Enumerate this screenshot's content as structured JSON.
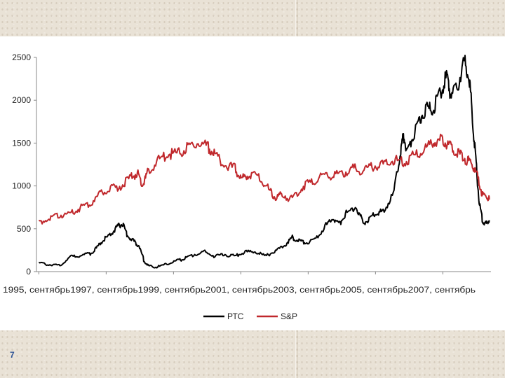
{
  "page": {
    "number": "7"
  },
  "colors": {
    "series_1": "#000000",
    "series_2": "#c0282c",
    "axis": "#888888"
  },
  "chart_data": {
    "type": "line",
    "title": "",
    "xlabel": "",
    "ylabel": "",
    "ylim": [
      0,
      2500
    ],
    "yticks": [
      0,
      500,
      1000,
      1500,
      2000,
      2500
    ],
    "xlim": [
      1995.6,
      2009.1
    ],
    "x_tick_labels": [
      "1995, сентябрь",
      "1997, сентябрь",
      "1999, сентябрь",
      "2001, сентябрь",
      "2003, сентябрь",
      "2005, сентябрь",
      "2007, сентябрь"
    ],
    "x_tick_years": [
      1995.67,
      1997.67,
      1999.67,
      2001.67,
      2003.67,
      2005.67,
      2007.67
    ],
    "legend_position": "bottom",
    "grid": false,
    "series": [
      {
        "name": "РТС",
        "color": "#000000",
        "points": [
          [
            1995.67,
            100
          ],
          [
            1996.0,
            80
          ],
          [
            1996.3,
            75
          ],
          [
            1996.6,
            170
          ],
          [
            1996.9,
            190
          ],
          [
            1997.2,
            210
          ],
          [
            1997.4,
            280
          ],
          [
            1997.6,
            380
          ],
          [
            1997.8,
            430
          ],
          [
            1998.0,
            520
          ],
          [
            1998.15,
            560
          ],
          [
            1998.3,
            420
          ],
          [
            1998.5,
            350
          ],
          [
            1998.65,
            300
          ],
          [
            1998.8,
            120
          ],
          [
            1998.95,
            60
          ],
          [
            1999.2,
            55
          ],
          [
            1999.5,
            90
          ],
          [
            1999.8,
            130
          ],
          [
            2000.0,
            150
          ],
          [
            2000.3,
            200
          ],
          [
            2000.6,
            230
          ],
          [
            2000.9,
            180
          ],
          [
            2001.2,
            200
          ],
          [
            2001.5,
            180
          ],
          [
            2001.8,
            230
          ],
          [
            2002.1,
            230
          ],
          [
            2002.4,
            180
          ],
          [
            2002.7,
            240
          ],
          [
            2003.0,
            320
          ],
          [
            2003.2,
            400
          ],
          [
            2003.4,
            360
          ],
          [
            2003.6,
            340
          ],
          [
            2003.9,
            380
          ],
          [
            2004.2,
            540
          ],
          [
            2004.4,
            620
          ],
          [
            2004.6,
            560
          ],
          [
            2004.8,
            680
          ],
          [
            2005.1,
            760
          ],
          [
            2005.3,
            560
          ],
          [
            2005.5,
            620
          ],
          [
            2005.7,
            680
          ],
          [
            2005.9,
            700
          ],
          [
            2006.2,
            900
          ],
          [
            2006.4,
            1350
          ],
          [
            2006.5,
            1600
          ],
          [
            2006.6,
            1400
          ],
          [
            2006.8,
            1600
          ],
          [
            2007.0,
            1800
          ],
          [
            2007.2,
            1900
          ],
          [
            2007.4,
            1900
          ],
          [
            2007.6,
            2100
          ],
          [
            2007.8,
            2300
          ],
          [
            2007.9,
            2050
          ],
          [
            2008.1,
            2150
          ],
          [
            2008.3,
            2450
          ],
          [
            2008.45,
            2300
          ],
          [
            2008.55,
            1800
          ],
          [
            2008.65,
            1300
          ],
          [
            2008.75,
            800
          ],
          [
            2008.85,
            600
          ],
          [
            2008.95,
            550
          ],
          [
            2009.05,
            600
          ]
        ]
      },
      {
        "name": "S&P",
        "color": "#c0282c",
        "points": [
          [
            1995.67,
            580
          ],
          [
            1996.0,
            620
          ],
          [
            1996.3,
            660
          ],
          [
            1996.6,
            680
          ],
          [
            1996.9,
            740
          ],
          [
            1997.2,
            800
          ],
          [
            1997.5,
            910
          ],
          [
            1997.8,
            960
          ],
          [
            1998.1,
            1000
          ],
          [
            1998.4,
            1100
          ],
          [
            1998.6,
            1150
          ],
          [
            1998.75,
            1000
          ],
          [
            1998.9,
            1150
          ],
          [
            1999.2,
            1300
          ],
          [
            1999.5,
            1370
          ],
          [
            1999.8,
            1380
          ],
          [
            2000.1,
            1450
          ],
          [
            2000.4,
            1500
          ],
          [
            2000.7,
            1450
          ],
          [
            2000.9,
            1360
          ],
          [
            2001.2,
            1250
          ],
          [
            2001.5,
            1200
          ],
          [
            2001.7,
            1080
          ],
          [
            2001.9,
            1140
          ],
          [
            2002.2,
            1120
          ],
          [
            2002.5,
            950
          ],
          [
            2002.7,
            860
          ],
          [
            2002.9,
            900
          ],
          [
            2003.2,
            840
          ],
          [
            2003.5,
            990
          ],
          [
            2003.8,
            1050
          ],
          [
            2004.1,
            1130
          ],
          [
            2004.4,
            1120
          ],
          [
            2004.7,
            1150
          ],
          [
            2005.0,
            1200
          ],
          [
            2005.3,
            1180
          ],
          [
            2005.6,
            1230
          ],
          [
            2005.9,
            1250
          ],
          [
            2006.2,
            1300
          ],
          [
            2006.5,
            1280
          ],
          [
            2006.8,
            1350
          ],
          [
            2007.1,
            1420
          ],
          [
            2007.4,
            1500
          ],
          [
            2007.6,
            1530
          ],
          [
            2007.8,
            1500
          ],
          [
            2008.0,
            1420
          ],
          [
            2008.2,
            1360
          ],
          [
            2008.4,
            1300
          ],
          [
            2008.55,
            1250
          ],
          [
            2008.7,
            1100
          ],
          [
            2008.85,
            900
          ],
          [
            2009.0,
            860
          ],
          [
            2009.05,
            840
          ]
        ]
      }
    ]
  }
}
